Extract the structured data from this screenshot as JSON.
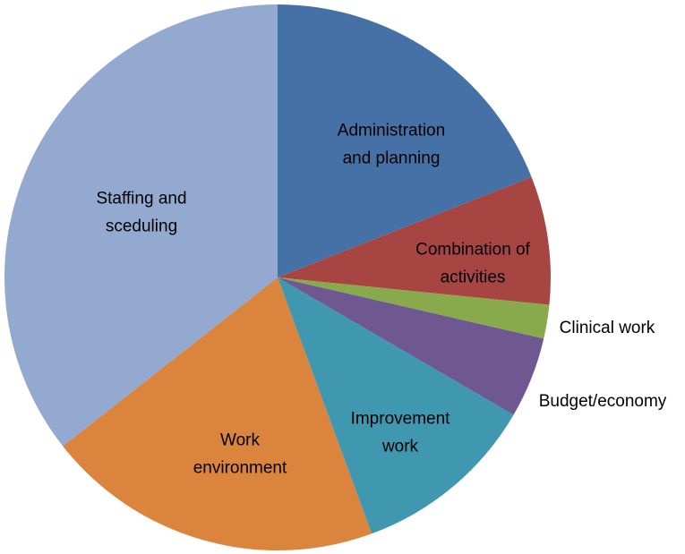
{
  "chart_data": {
    "type": "pie",
    "title": "",
    "start_angle_deg": 0,
    "direction": "clockwise",
    "slices": [
      {
        "label": "Administration and planning",
        "label_lines": [
          "Administration",
          "and planning"
        ],
        "value": 19.0,
        "color": "#4671A6",
        "label_position": "inside"
      },
      {
        "label": "Combination of activities",
        "label_lines": [
          "Combination of",
          "activities"
        ],
        "value": 7.6,
        "color": "#A74543",
        "label_position": "inside"
      },
      {
        "label": "Clinical work",
        "label_lines": [
          "Clinical work"
        ],
        "value": 2.0,
        "color": "#89A94D",
        "label_position": "outside"
      },
      {
        "label": "Budget/economy",
        "label_lines": [
          "Budget/economy"
        ],
        "value": 4.8,
        "color": "#6F5792",
        "label_position": "outside"
      },
      {
        "label": "Improvement work",
        "label_lines": [
          "Improvement",
          "work"
        ],
        "value": 11.0,
        "color": "#3F98AF",
        "label_position": "inside"
      },
      {
        "label": "Work environment",
        "label_lines": [
          "Work",
          "environment"
        ],
        "value": 20.0,
        "color": "#DB843D",
        "label_position": "inside"
      },
      {
        "label": "Staffing and sceduling",
        "label_lines": [
          "Staffing and",
          "sceduling"
        ],
        "value": 35.6,
        "color": "#93A9CF",
        "label_position": "inside"
      }
    ]
  }
}
